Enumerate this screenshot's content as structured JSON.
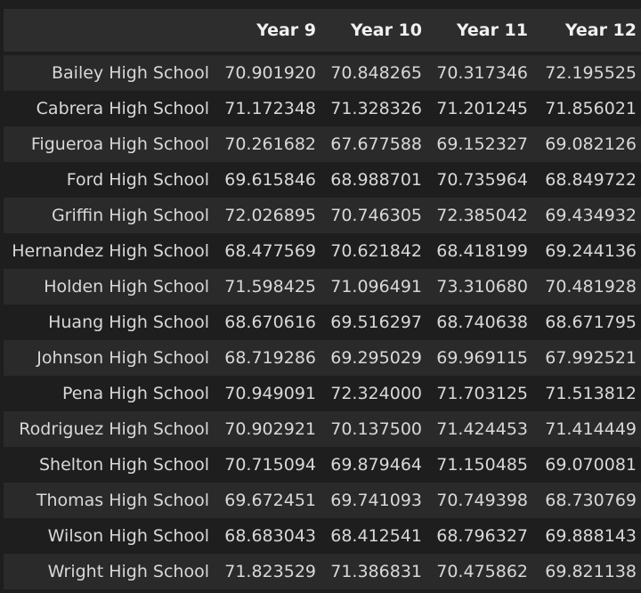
{
  "table": {
    "index_header": "",
    "columns": [
      "Year 9",
      "Year 10",
      "Year 11",
      "Year 12"
    ],
    "rows": [
      {
        "school": "Bailey High School",
        "values": [
          "70.901920",
          "70.848265",
          "70.317346",
          "72.195525"
        ]
      },
      {
        "school": "Cabrera High School",
        "values": [
          "71.172348",
          "71.328326",
          "71.201245",
          "71.856021"
        ]
      },
      {
        "school": "Figueroa High School",
        "values": [
          "70.261682",
          "67.677588",
          "69.152327",
          "69.082126"
        ]
      },
      {
        "school": "Ford High School",
        "values": [
          "69.615846",
          "68.988701",
          "70.735964",
          "68.849722"
        ]
      },
      {
        "school": "Griffin High School",
        "values": [
          "72.026895",
          "70.746305",
          "72.385042",
          "69.434932"
        ]
      },
      {
        "school": "Hernandez High School",
        "values": [
          "68.477569",
          "70.621842",
          "68.418199",
          "69.244136"
        ]
      },
      {
        "school": "Holden High School",
        "values": [
          "71.598425",
          "71.096491",
          "73.310680",
          "70.481928"
        ]
      },
      {
        "school": "Huang High School",
        "values": [
          "68.670616",
          "69.516297",
          "68.740638",
          "68.671795"
        ]
      },
      {
        "school": "Johnson High School",
        "values": [
          "68.719286",
          "69.295029",
          "69.969115",
          "67.992521"
        ]
      },
      {
        "school": "Pena High School",
        "values": [
          "70.949091",
          "72.324000",
          "71.703125",
          "71.513812"
        ]
      },
      {
        "school": "Rodriguez High School",
        "values": [
          "70.902921",
          "70.137500",
          "71.424453",
          "71.414449"
        ]
      },
      {
        "school": "Shelton High School",
        "values": [
          "70.715094",
          "69.879464",
          "71.150485",
          "69.070081"
        ]
      },
      {
        "school": "Thomas High School",
        "values": [
          "69.672451",
          "69.741093",
          "70.749398",
          "68.730769"
        ]
      },
      {
        "school": "Wilson High School",
        "values": [
          "68.683043",
          "68.412541",
          "68.796327",
          "69.888143"
        ]
      },
      {
        "school": "Wright High School",
        "values": [
          "71.823529",
          "71.386831",
          "70.475862",
          "69.821138"
        ]
      }
    ]
  },
  "colors": {
    "background": "#1e1e1e",
    "header_background": "#2d2d2d",
    "stripe": "#2a2a2a",
    "text": "#d8d8d8"
  }
}
